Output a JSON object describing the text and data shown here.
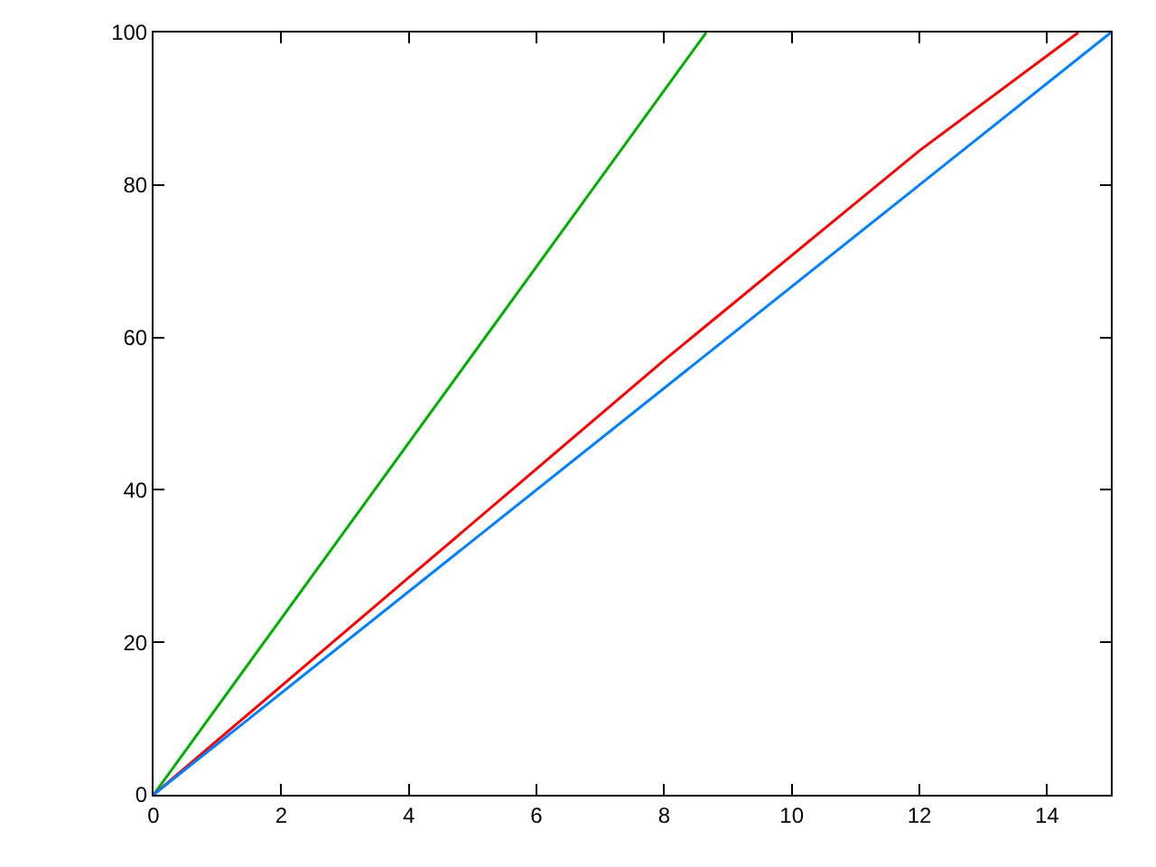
{
  "chart_data": {
    "type": "line",
    "xlim": [
      0,
      15
    ],
    "ylim": [
      0,
      100
    ],
    "xticks": [
      0,
      2,
      4,
      6,
      8,
      10,
      12,
      14
    ],
    "yticks": [
      0,
      20,
      40,
      60,
      80,
      100
    ],
    "marker": "none",
    "line_style": "solid",
    "series": [
      {
        "color": "#00b000",
        "x": [
          0,
          8.66
        ],
        "values": [
          0,
          100
        ]
      },
      {
        "color": "#ff0000",
        "x": [
          0,
          4,
          8,
          12,
          14.49
        ],
        "values": [
          0,
          28.5,
          57,
          84.5,
          100
        ]
      },
      {
        "color": "#0080ff",
        "x": [
          0,
          15
        ],
        "values": [
          0,
          100
        ]
      }
    ]
  }
}
